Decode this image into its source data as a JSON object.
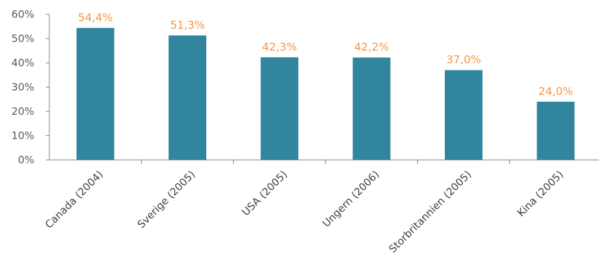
{
  "chart_data": {
    "type": "bar",
    "categories": [
      "Canada (2004)",
      "Sverige (2005)",
      "USA (2005)",
      "Ungern (2006)",
      "Storbritannien (2005)",
      "Kina (2005)"
    ],
    "values": [
      54.4,
      51.3,
      42.3,
      42.2,
      37.0,
      24.0
    ],
    "data_labels": [
      "54,4%",
      "51,3%",
      "42,3%",
      "42,2%",
      "37,0%",
      "24,0%"
    ],
    "title": "",
    "xlabel": "",
    "ylabel": "",
    "ylim": [
      0,
      60
    ],
    "yticks": [
      0,
      10,
      20,
      30,
      40,
      50,
      60
    ],
    "ytick_labels": [
      "0%",
      "10%",
      "20%",
      "30%",
      "40%",
      "50%",
      "60%"
    ],
    "grid": false,
    "legend": "none",
    "bar_color": "#31859c",
    "label_color": "#f79646"
  }
}
